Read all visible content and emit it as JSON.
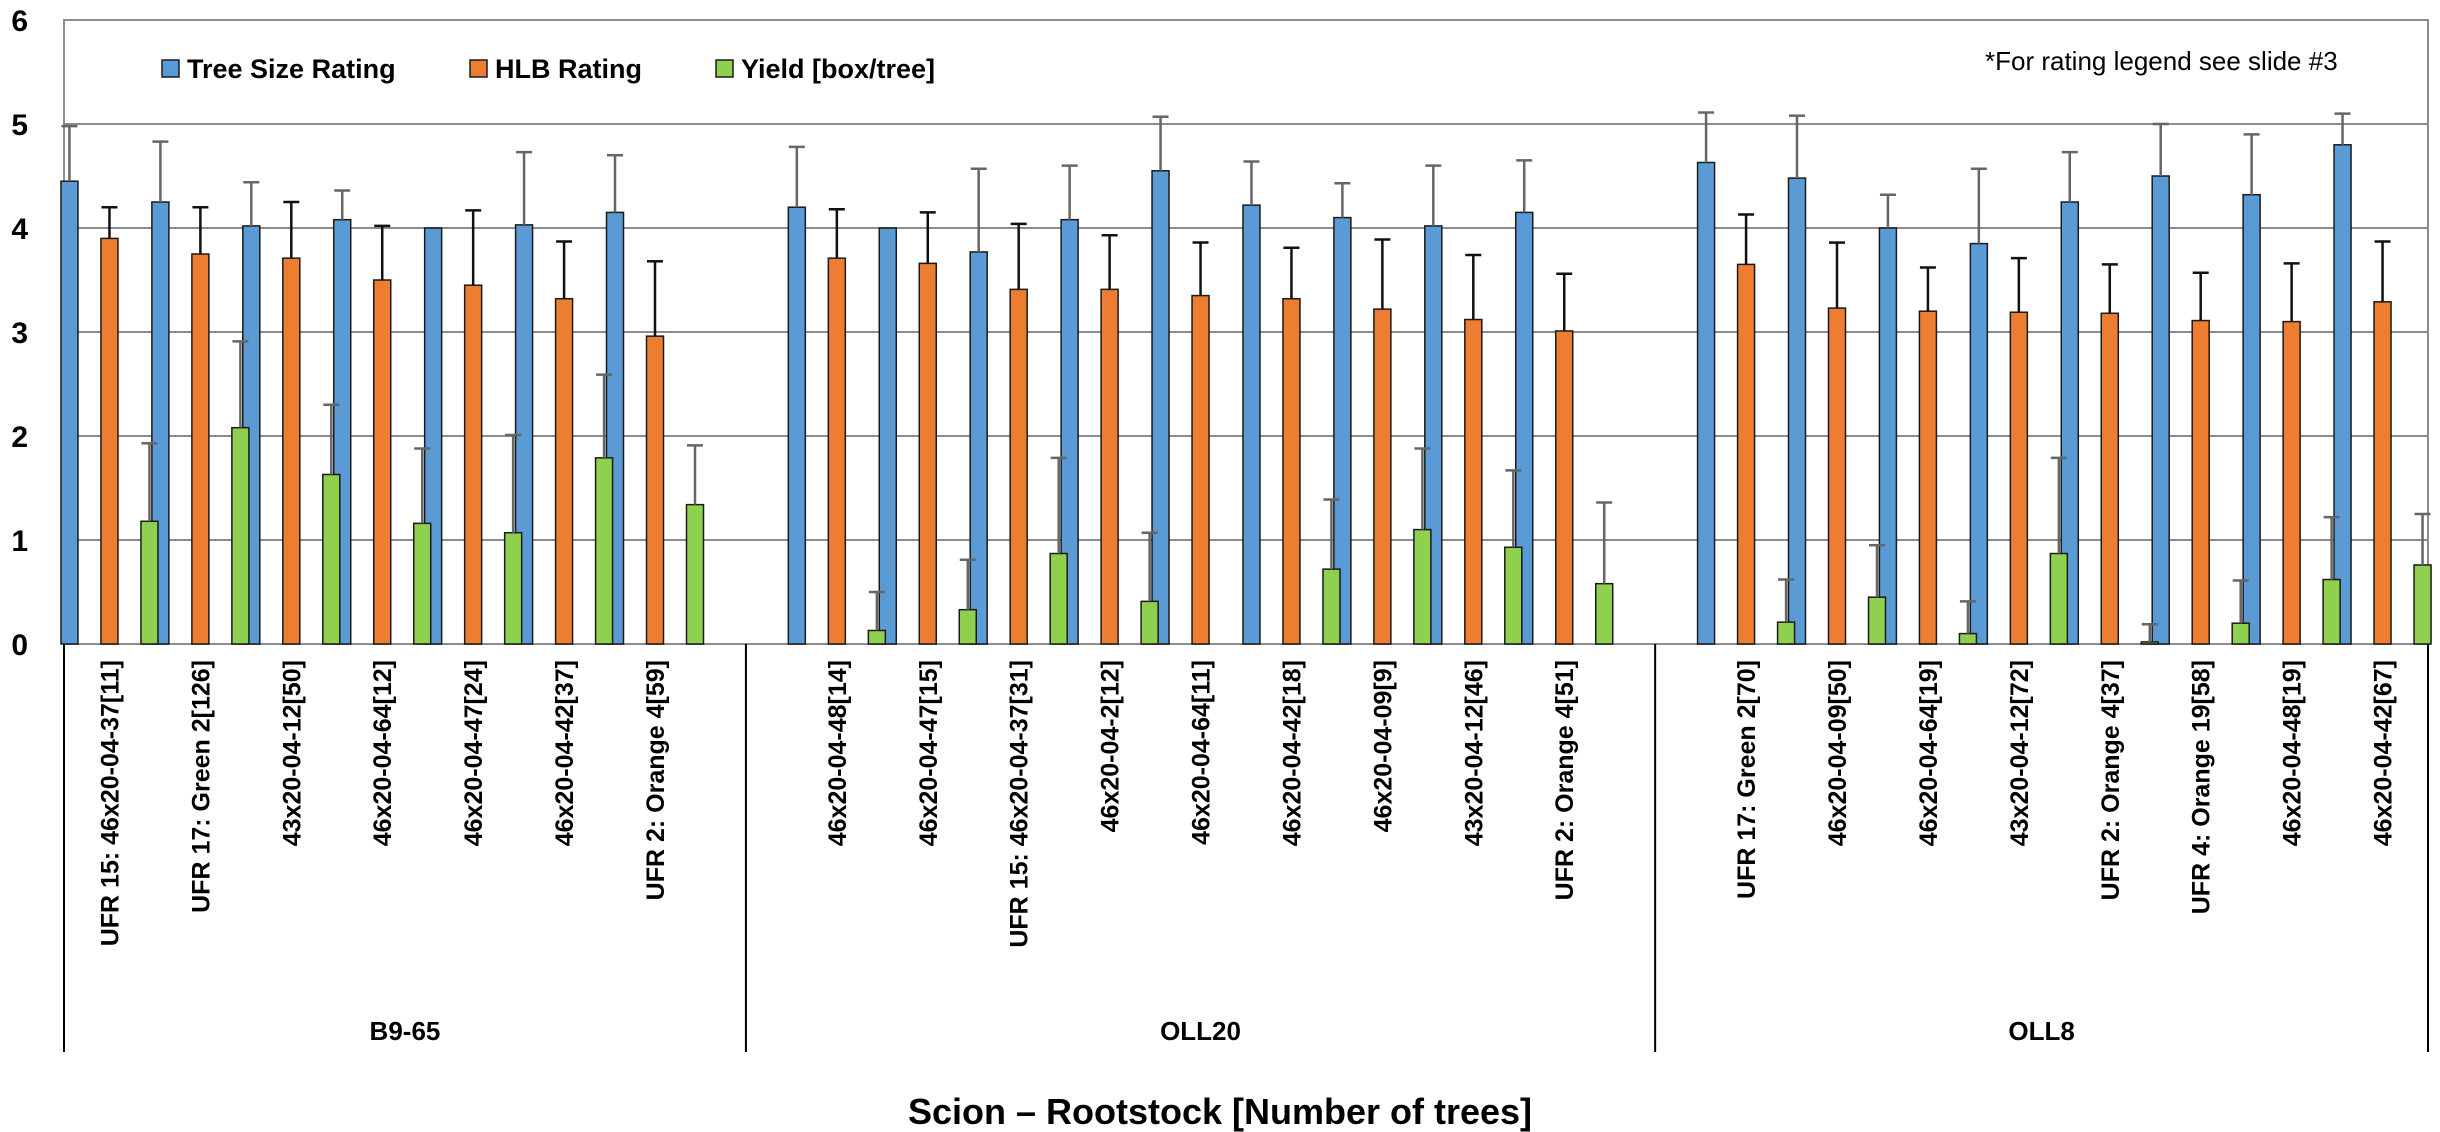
{
  "chart_data": {
    "type": "bar",
    "title": "",
    "xlabel": "Scion – Rootstock [Number of trees]",
    "ylabel": "",
    "ylim": [
      0,
      6
    ],
    "yticks": [
      "0",
      "1",
      "2",
      "3",
      "4",
      "5",
      "6"
    ],
    "grid": true,
    "legend_position": "top-left",
    "note": "*For rating legend see slide #3",
    "groups": [
      {
        "name": "B9-65",
        "categories": [
          "UFR 15: 46x20-04-37[11]",
          "UFR 17: Green 2[126]",
          "43x20-04-12[50]",
          "46x20-04-64[12]",
          "46x20-04-47[24]",
          "46x20-04-42[37]",
          "UFR 2: Orange 4[59]"
        ]
      },
      {
        "name": "OLL20",
        "categories": [
          "46x20-04-48[14]",
          "46x20-04-47[15]",
          "UFR 15: 46x20-04-37[31]",
          "46x20-04-2[12]",
          "46x20-04-64[11]",
          "46x20-04-42[18]",
          "46x20-04-09[9]",
          "43x20-04-12[46]",
          "UFR 2: Orange 4[51]"
        ]
      },
      {
        "name": "OLL8",
        "categories": [
          "UFR 17: Green 2[70]",
          "46x20-04-09[50]",
          "46x20-04-64[19]",
          "43x20-04-12[72]",
          "UFR 2: Orange 4[37]",
          "UFR 4: Orange 19[58]",
          "46x20-04-48[19]",
          "46x20-04-42[67]"
        ]
      }
    ],
    "series": [
      {
        "name": "Tree Size Rating",
        "color": "#5b9bd5",
        "values": [
          4.45,
          4.25,
          4.02,
          4.08,
          4.0,
          4.03,
          4.15,
          4.2,
          4.0,
          3.77,
          4.08,
          4.55,
          4.22,
          4.1,
          4.02,
          4.15,
          4.63,
          4.48,
          4.0,
          3.85,
          4.25,
          4.5,
          4.32,
          4.8
        ],
        "errors": [
          0.53,
          0.58,
          0.42,
          0.28,
          0.0,
          0.7,
          0.55,
          0.58,
          0.0,
          0.8,
          0.52,
          0.52,
          0.42,
          0.33,
          0.58,
          0.5,
          0.48,
          0.6,
          0.32,
          0.72,
          0.48,
          0.5,
          0.58,
          0.3
        ]
      },
      {
        "name": "HLB Rating",
        "color": "#ed7d31",
        "values": [
          3.9,
          3.75,
          3.71,
          3.5,
          3.45,
          3.32,
          2.96,
          3.71,
          3.66,
          3.41,
          3.41,
          3.35,
          3.32,
          3.22,
          3.12,
          3.01,
          3.65,
          3.23,
          3.2,
          3.19,
          3.18,
          3.11,
          3.1,
          3.29
        ],
        "errors": [
          0.3,
          0.45,
          0.54,
          0.52,
          0.72,
          0.55,
          0.72,
          0.47,
          0.49,
          0.63,
          0.52,
          0.51,
          0.49,
          0.67,
          0.62,
          0.55,
          0.48,
          0.63,
          0.42,
          0.52,
          0.47,
          0.46,
          0.56,
          0.58
        ]
      },
      {
        "name": "Yield [box/tree]",
        "color": "#8fd14f",
        "values": [
          1.18,
          2.08,
          1.63,
          1.16,
          1.07,
          1.79,
          1.34,
          0.13,
          0.33,
          0.87,
          0.41,
          0.0,
          0.72,
          1.1,
          0.93,
          0.58,
          0.21,
          0.45,
          0.1,
          0.87,
          0.02,
          0.2,
          0.62,
          0.76
        ],
        "errors": [
          0.75,
          0.83,
          0.67,
          0.72,
          0.94,
          0.8,
          0.57,
          0.37,
          0.48,
          0.92,
          0.66,
          0.0,
          0.67,
          0.78,
          0.74,
          0.78,
          0.41,
          0.5,
          0.31,
          0.92,
          0.17,
          0.41,
          0.6,
          0.49
        ]
      }
    ]
  }
}
